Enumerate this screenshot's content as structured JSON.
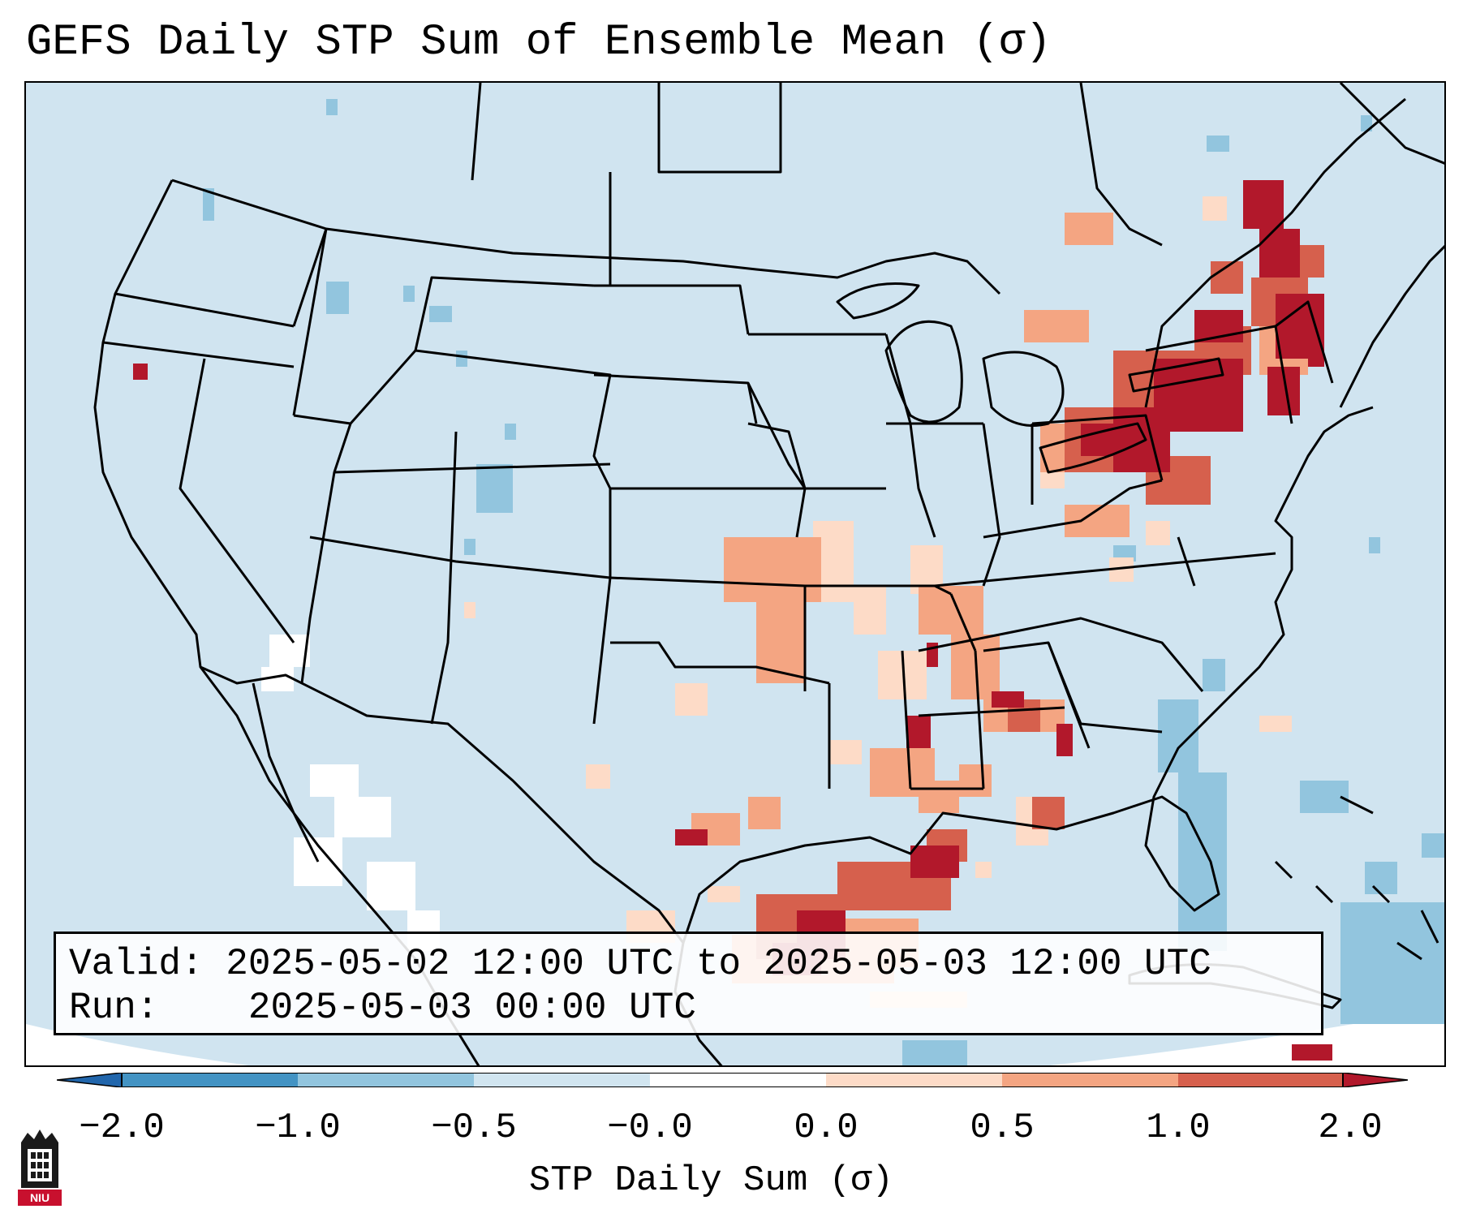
{
  "title": "GEFS Daily STP Sum of Ensemble Mean (σ)",
  "info": {
    "valid_label": "Valid:",
    "valid_value": "2025-05-02 12:00 UTC to 2025-05-03 12:00 UTC",
    "run_label": "Run:",
    "run_value": "2025-05-03 00:00 UTC"
  },
  "colorbar": {
    "label": "STP Daily Sum (σ)",
    "ticks": [
      "−2.0",
      "−1.0",
      "−0.5",
      "−0.0",
      "0.0",
      "0.5",
      "1.0",
      "2.0"
    ],
    "colors": [
      "#2166ac",
      "#4393c3",
      "#92c5de",
      "#d1e5f0",
      "#ffffff",
      "#fddbc7",
      "#f4a582",
      "#d6604d",
      "#b2182b"
    ]
  },
  "logo": {
    "text": "NIU"
  }
}
